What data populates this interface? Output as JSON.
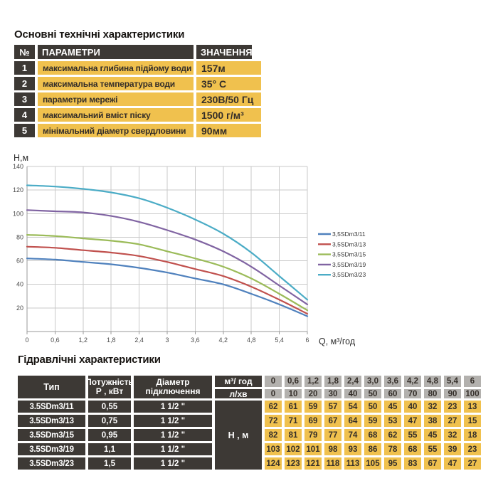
{
  "colors": {
    "cell_dark": "#3d3935",
    "cell_yellow": "#f0c14e",
    "cell_gray": "#b3b1ae",
    "grid_line": "#c9c9c9",
    "axis_line": "#9a9a9a"
  },
  "tech_specs": {
    "title": "Основні технічні характеристики",
    "headers": {
      "num": "№",
      "param": "ПАРАМЕТРИ",
      "value": "ЗНАЧЕННЯ"
    },
    "rows": [
      {
        "num": "1",
        "param": "максимальна глибина підйому води",
        "value": "157м"
      },
      {
        "num": "2",
        "param": "максимальна температура води",
        "value": "35° С"
      },
      {
        "num": "3",
        "param": "параметри мережі",
        "value": "230В/50 Гц"
      },
      {
        "num": "4",
        "param": "максимальний вміст піску",
        "value": "1500 г/м³"
      },
      {
        "num": "5",
        "param": "мінімальний діаметр свердловини",
        "value": "90мм"
      }
    ]
  },
  "chart_data": {
    "type": "line",
    "title": "",
    "xlabel": "Q,  м³/год",
    "ylabel": "Н,м",
    "x": [
      0,
      0.6,
      1.2,
      1.8,
      2.4,
      3,
      3.6,
      4.2,
      4.8,
      5.4,
      6
    ],
    "x_tick_labels": [
      "0",
      "0,6",
      "1,2",
      "1,8",
      "2,4",
      "3",
      "3,6",
      "4,2",
      "4,8",
      "5,4",
      "6"
    ],
    "ylim": [
      0,
      140
    ],
    "y_ticks": [
      20,
      40,
      60,
      80,
      100,
      120,
      140
    ],
    "grid": true,
    "legend_position": "right",
    "series": [
      {
        "name": "3,5SDm3/11",
        "color": "#4F81BD",
        "values": [
          62,
          61,
          59,
          57,
          54,
          50,
          45,
          40,
          32,
          23,
          13
        ]
      },
      {
        "name": "3,5SDm3/13",
        "color": "#C0504D",
        "values": [
          72,
          71,
          69,
          67,
          64,
          59,
          53,
          47,
          38,
          27,
          15
        ]
      },
      {
        "name": "3,5SDm3/15",
        "color": "#9BBB59",
        "values": [
          82,
          81,
          79,
          77,
          74,
          68,
          62,
          55,
          45,
          32,
          18
        ]
      },
      {
        "name": "3,5SDm3/19",
        "color": "#8064A2",
        "values": [
          103,
          102,
          101,
          98,
          93,
          86,
          78,
          68,
          55,
          39,
          23
        ]
      },
      {
        "name": "3,5SDm3/23",
        "color": "#4BACC6",
        "values": [
          124,
          123,
          121,
          118,
          113,
          105,
          95,
          83,
          67,
          47,
          27
        ]
      }
    ]
  },
  "hydro": {
    "title": "Гідравлічні характеристики",
    "headers": {
      "type": "Тип",
      "power1": "Потужність",
      "power2": "Р , кВт",
      "diameter1": "Діаметр",
      "diameter2": "підключення",
      "flow_m3": "м³/ год",
      "flow_l": "л/хв",
      "head": "Н , м"
    },
    "flow_m3": [
      "0",
      "0,6",
      "1,2",
      "1,8",
      "2,4",
      "3,0",
      "3,6",
      "4,2",
      "4,8",
      "5,4",
      "6"
    ],
    "flow_l": [
      "0",
      "10",
      "20",
      "30",
      "40",
      "50",
      "60",
      "70",
      "80",
      "90",
      "100"
    ],
    "rows": [
      {
        "type": "3.5SDm3/11",
        "power": "0,55",
        "diameter": "1 1/2 \"",
        "heads": [
          "62",
          "61",
          "59",
          "57",
          "54",
          "50",
          "45",
          "40",
          "32",
          "23",
          "13"
        ]
      },
      {
        "type": "3.5SDm3/13",
        "power": "0,75",
        "diameter": "1 1/2 \"",
        "heads": [
          "72",
          "71",
          "69",
          "67",
          "64",
          "59",
          "53",
          "47",
          "38",
          "27",
          "15"
        ]
      },
      {
        "type": "3.5SDm3/15",
        "power": "0,95",
        "diameter": "1 1/2 \"",
        "heads": [
          "82",
          "81",
          "79",
          "77",
          "74",
          "68",
          "62",
          "55",
          "45",
          "32",
          "18"
        ]
      },
      {
        "type": "3.5SDm3/19",
        "power": "1,1",
        "diameter": "1 1/2 \"",
        "heads": [
          "103",
          "102",
          "101",
          "98",
          "93",
          "86",
          "78",
          "68",
          "55",
          "39",
          "23"
        ]
      },
      {
        "type": "3.5SDm3/23",
        "power": "1,5",
        "diameter": "1 1/2 \"",
        "heads": [
          "124",
          "123",
          "121",
          "118",
          "113",
          "105",
          "95",
          "83",
          "67",
          "47",
          "27"
        ]
      }
    ]
  }
}
